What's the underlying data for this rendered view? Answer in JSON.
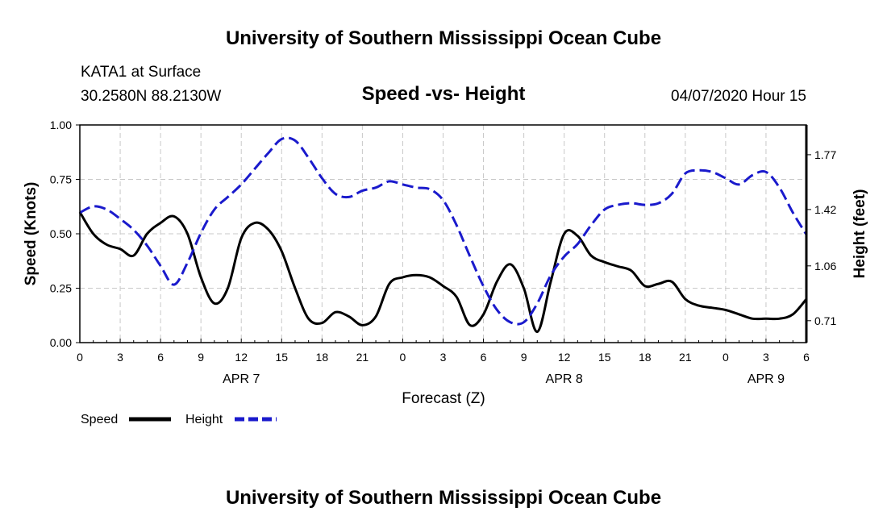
{
  "header": {
    "title": "University of Southern Mississippi Ocean Cube",
    "station": "KATA1 at Surface",
    "coords": "30.2580N 88.2130W",
    "date": "04/07/2020 Hour 15"
  },
  "footer": {
    "title": "University of Southern Mississippi Ocean Cube"
  },
  "colors": {
    "speed": "#000000",
    "height": "#1a1acc",
    "grid": "#c8c8c8"
  },
  "chart_data": {
    "type": "line",
    "title": "Speed -vs- Height",
    "xlabel": "Forecast (Z)",
    "ylabel": "Speed (Knots)",
    "y2label": "Height (feet)",
    "xlim": [
      0,
      54
    ],
    "ylim": [
      0,
      1
    ],
    "y2lim": [
      0.57,
      1.96
    ],
    "grid": true,
    "xticks": [
      0,
      3,
      6,
      9,
      12,
      15,
      18,
      21,
      24,
      27,
      30,
      33,
      36,
      39,
      42,
      45,
      48,
      51,
      54
    ],
    "xtick_labels": [
      "0",
      "3",
      "6",
      "9",
      "12",
      "15",
      "18",
      "21",
      "0",
      "3",
      "6",
      "9",
      "12",
      "15",
      "18",
      "21",
      "0",
      "3",
      "6"
    ],
    "date_labels": [
      {
        "label": "APR 7",
        "x": 12
      },
      {
        "label": "APR 8",
        "x": 36
      },
      {
        "label": "APR 9",
        "x": 51
      }
    ],
    "yticks": [
      0.0,
      0.25,
      0.5,
      0.75,
      1.0
    ],
    "ytick_labels": [
      "0.00",
      "0.25",
      "0.50",
      "0.75",
      "1.00"
    ],
    "y2ticks": [
      0.71,
      1.06,
      1.42,
      1.77
    ],
    "y2tick_labels": [
      "0.71",
      "1.06",
      "1.42",
      "1.77"
    ],
    "legend": {
      "placement": "bottom-left",
      "speed_label": "Speed",
      "height_label": "Height"
    },
    "series": [
      {
        "name": "Speed",
        "axis": "left",
        "style": "solid",
        "x": [
          0,
          1,
          2,
          3,
          4,
          5,
          6,
          7,
          8,
          9,
          10,
          11,
          12,
          13,
          14,
          15,
          16,
          17,
          18,
          19,
          20,
          21,
          22,
          23,
          24,
          25,
          26,
          27,
          28,
          29,
          30,
          31,
          32,
          33,
          34,
          35,
          36,
          37,
          38,
          39,
          40,
          41,
          42,
          43,
          44,
          45,
          46,
          47,
          48,
          49,
          50,
          51,
          52,
          53,
          54
        ],
        "values": [
          0.6,
          0.5,
          0.45,
          0.43,
          0.4,
          0.5,
          0.55,
          0.58,
          0.5,
          0.3,
          0.18,
          0.25,
          0.48,
          0.55,
          0.52,
          0.42,
          0.25,
          0.11,
          0.09,
          0.14,
          0.12,
          0.08,
          0.12,
          0.27,
          0.3,
          0.31,
          0.3,
          0.26,
          0.21,
          0.08,
          0.13,
          0.28,
          0.36,
          0.25,
          0.05,
          0.28,
          0.5,
          0.49,
          0.4,
          0.37,
          0.35,
          0.33,
          0.26,
          0.27,
          0.28,
          0.2,
          0.17,
          0.16,
          0.15,
          0.13,
          0.11,
          0.11,
          0.11,
          0.13,
          0.2
        ]
      },
      {
        "name": "Height",
        "axis": "right",
        "style": "dashed",
        "x": [
          0,
          1,
          2,
          3,
          4,
          5,
          6,
          7,
          8,
          9,
          10,
          11,
          12,
          13,
          14,
          15,
          16,
          17,
          18,
          19,
          20,
          21,
          22,
          23,
          24,
          25,
          26,
          27,
          28,
          29,
          30,
          31,
          32,
          33,
          34,
          35,
          36,
          37,
          38,
          39,
          40,
          41,
          42,
          43,
          44,
          45,
          46,
          47,
          48,
          49,
          50,
          51,
          52,
          53,
          54
        ],
        "values": [
          1.4,
          1.44,
          1.42,
          1.36,
          1.29,
          1.19,
          1.06,
          0.94,
          1.08,
          1.27,
          1.42,
          1.5,
          1.58,
          1.68,
          1.78,
          1.87,
          1.86,
          1.75,
          1.62,
          1.52,
          1.5,
          1.54,
          1.56,
          1.6,
          1.58,
          1.56,
          1.55,
          1.48,
          1.32,
          1.12,
          0.93,
          0.78,
          0.7,
          0.7,
          0.82,
          1.0,
          1.12,
          1.2,
          1.32,
          1.42,
          1.45,
          1.46,
          1.45,
          1.46,
          1.52,
          1.65,
          1.67,
          1.66,
          1.62,
          1.58,
          1.64,
          1.66,
          1.56,
          1.4,
          1.26
        ]
      }
    ]
  }
}
